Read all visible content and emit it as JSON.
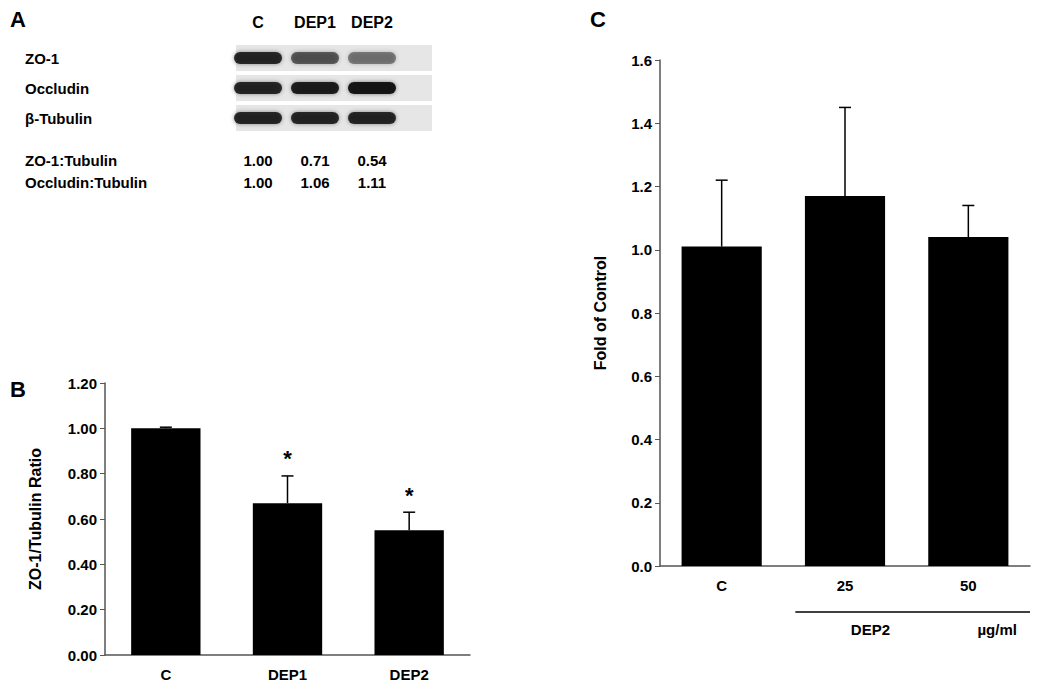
{
  "blot": {
    "title": "A",
    "lanes": [
      "C",
      "DEP1",
      "DEP2"
    ],
    "bands": [
      "ZO-1",
      "Occludin",
      "β-Tubulin"
    ],
    "ratios": [
      {
        "label": "ZO-1:Tubulin",
        "values": [
          1.0,
          0.71,
          0.54
        ],
        "value_labels": [
          "1.00",
          "0.71",
          "0.54"
        ]
      },
      {
        "label": "Occludin:Tubulin",
        "values": [
          1.0,
          1.06,
          1.11
        ],
        "value_labels": [
          "1.00",
          "1.06",
          "1.11"
        ]
      }
    ]
  },
  "chart_data": [
    {
      "type": "bar",
      "title": "B",
      "y_label": "ZO-1/Tubulin Ratio",
      "categories": [
        "C",
        "DEP1",
        "DEP2"
      ],
      "values": [
        1.0,
        0.67,
        0.55
      ],
      "errors": [
        0.005,
        0.12,
        0.08
      ],
      "significance": [
        null,
        "*",
        "*"
      ],
      "color": "#000000",
      "ylim": [
        0,
        1.2
      ],
      "yticks": [
        {
          "value": 0,
          "label": "0.00"
        },
        {
          "value": 0.2,
          "label": "0.20"
        },
        {
          "value": 0.4,
          "label": "0.40"
        },
        {
          "value": 0.6,
          "label": "0.60"
        },
        {
          "value": 0.8,
          "label": "0.80"
        },
        {
          "value": 1.0,
          "label": "1.00"
        },
        {
          "value": 1.2,
          "label": "1.20"
        }
      ],
      "grid": false
    },
    {
      "type": "bar",
      "title": "C",
      "y_label": "Fold of Control",
      "categories": [
        "C",
        "25",
        "50"
      ],
      "values": [
        1.01,
        1.17,
        1.04
      ],
      "errors": [
        0.21,
        0.28,
        0.1
      ],
      "annotations": [
        "DEP2",
        "µg/ml"
      ],
      "color": "#000000",
      "ylim": [
        0,
        1.6
      ],
      "yticks": [
        {
          "value": 0,
          "label": "0.0"
        },
        {
          "value": 0.2,
          "label": "0.2"
        },
        {
          "value": 0.4,
          "label": "0.4"
        },
        {
          "value": 0.6,
          "label": "0.6"
        },
        {
          "value": 0.8,
          "label": "0.8"
        },
        {
          "value": 1.0,
          "label": "1.0"
        },
        {
          "value": 1.2,
          "label": "1.2"
        },
        {
          "value": 1.4,
          "label": "1.4"
        },
        {
          "value": 1.6,
          "label": "1.6"
        }
      ],
      "grid": false
    }
  ]
}
